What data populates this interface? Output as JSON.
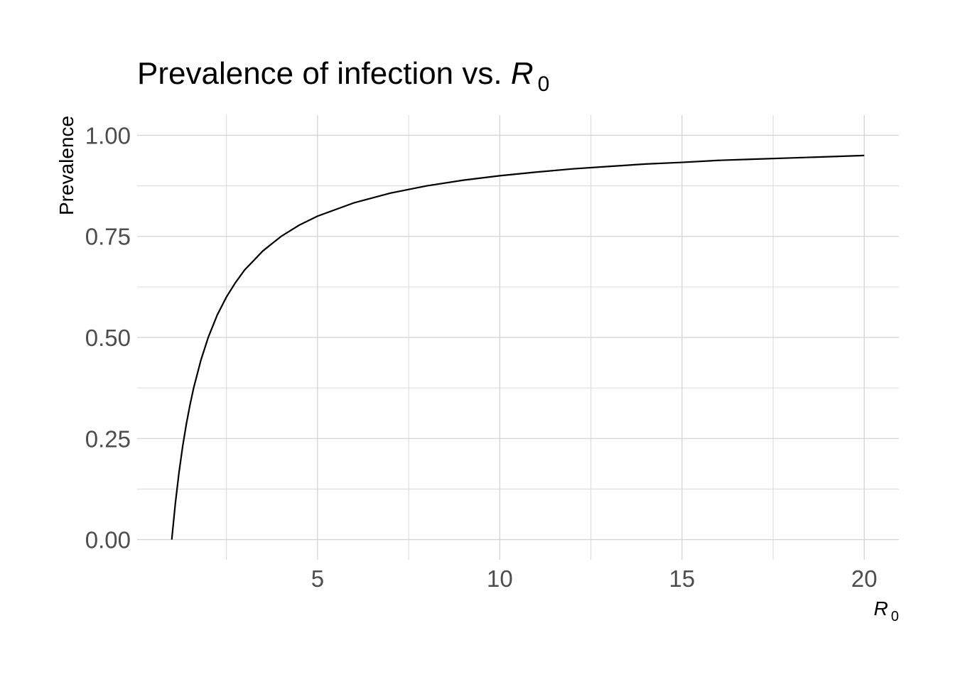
{
  "chart_data": {
    "type": "line",
    "title": {
      "text": "Prevalence of infection vs. ",
      "math_symbol": "R",
      "math_subscript": "0"
    },
    "xlabel": {
      "math_symbol": "R",
      "math_subscript": "0"
    },
    "ylabel": "Prevalence",
    "xlim": [
      0.05,
      20.95
    ],
    "ylim": [
      -0.05,
      1.05
    ],
    "x_ticks": [
      5,
      10,
      15,
      20
    ],
    "x_tick_labels": [
      "5",
      "10",
      "15",
      "20"
    ],
    "x_minor_ticks": [
      2.5,
      7.5,
      12.5,
      17.5
    ],
    "y_ticks": [
      0,
      0.25,
      0.5,
      0.75,
      1.0
    ],
    "y_tick_labels": [
      "0.00",
      "0.25",
      "0.50",
      "0.75",
      "1.00"
    ],
    "y_minor_ticks": [
      0.125,
      0.375,
      0.625,
      0.875
    ],
    "grid": true,
    "line_color": "#000000",
    "series": [
      {
        "x": [
          1,
          1.1,
          1.2,
          1.3,
          1.4,
          1.5,
          1.6,
          1.8,
          2,
          2.25,
          2.5,
          2.75,
          3,
          3.5,
          4,
          4.5,
          5,
          6,
          7,
          8,
          9,
          10,
          11,
          12,
          13,
          14,
          15,
          16,
          17,
          18,
          19,
          20
        ],
        "values": [
          0,
          0.091,
          0.167,
          0.231,
          0.286,
          0.333,
          0.375,
          0.444,
          0.5,
          0.556,
          0.6,
          0.636,
          0.667,
          0.714,
          0.75,
          0.778,
          0.8,
          0.833,
          0.857,
          0.875,
          0.889,
          0.9,
          0.909,
          0.917,
          0.923,
          0.929,
          0.933,
          0.938,
          0.941,
          0.944,
          0.947,
          0.95
        ]
      }
    ]
  }
}
